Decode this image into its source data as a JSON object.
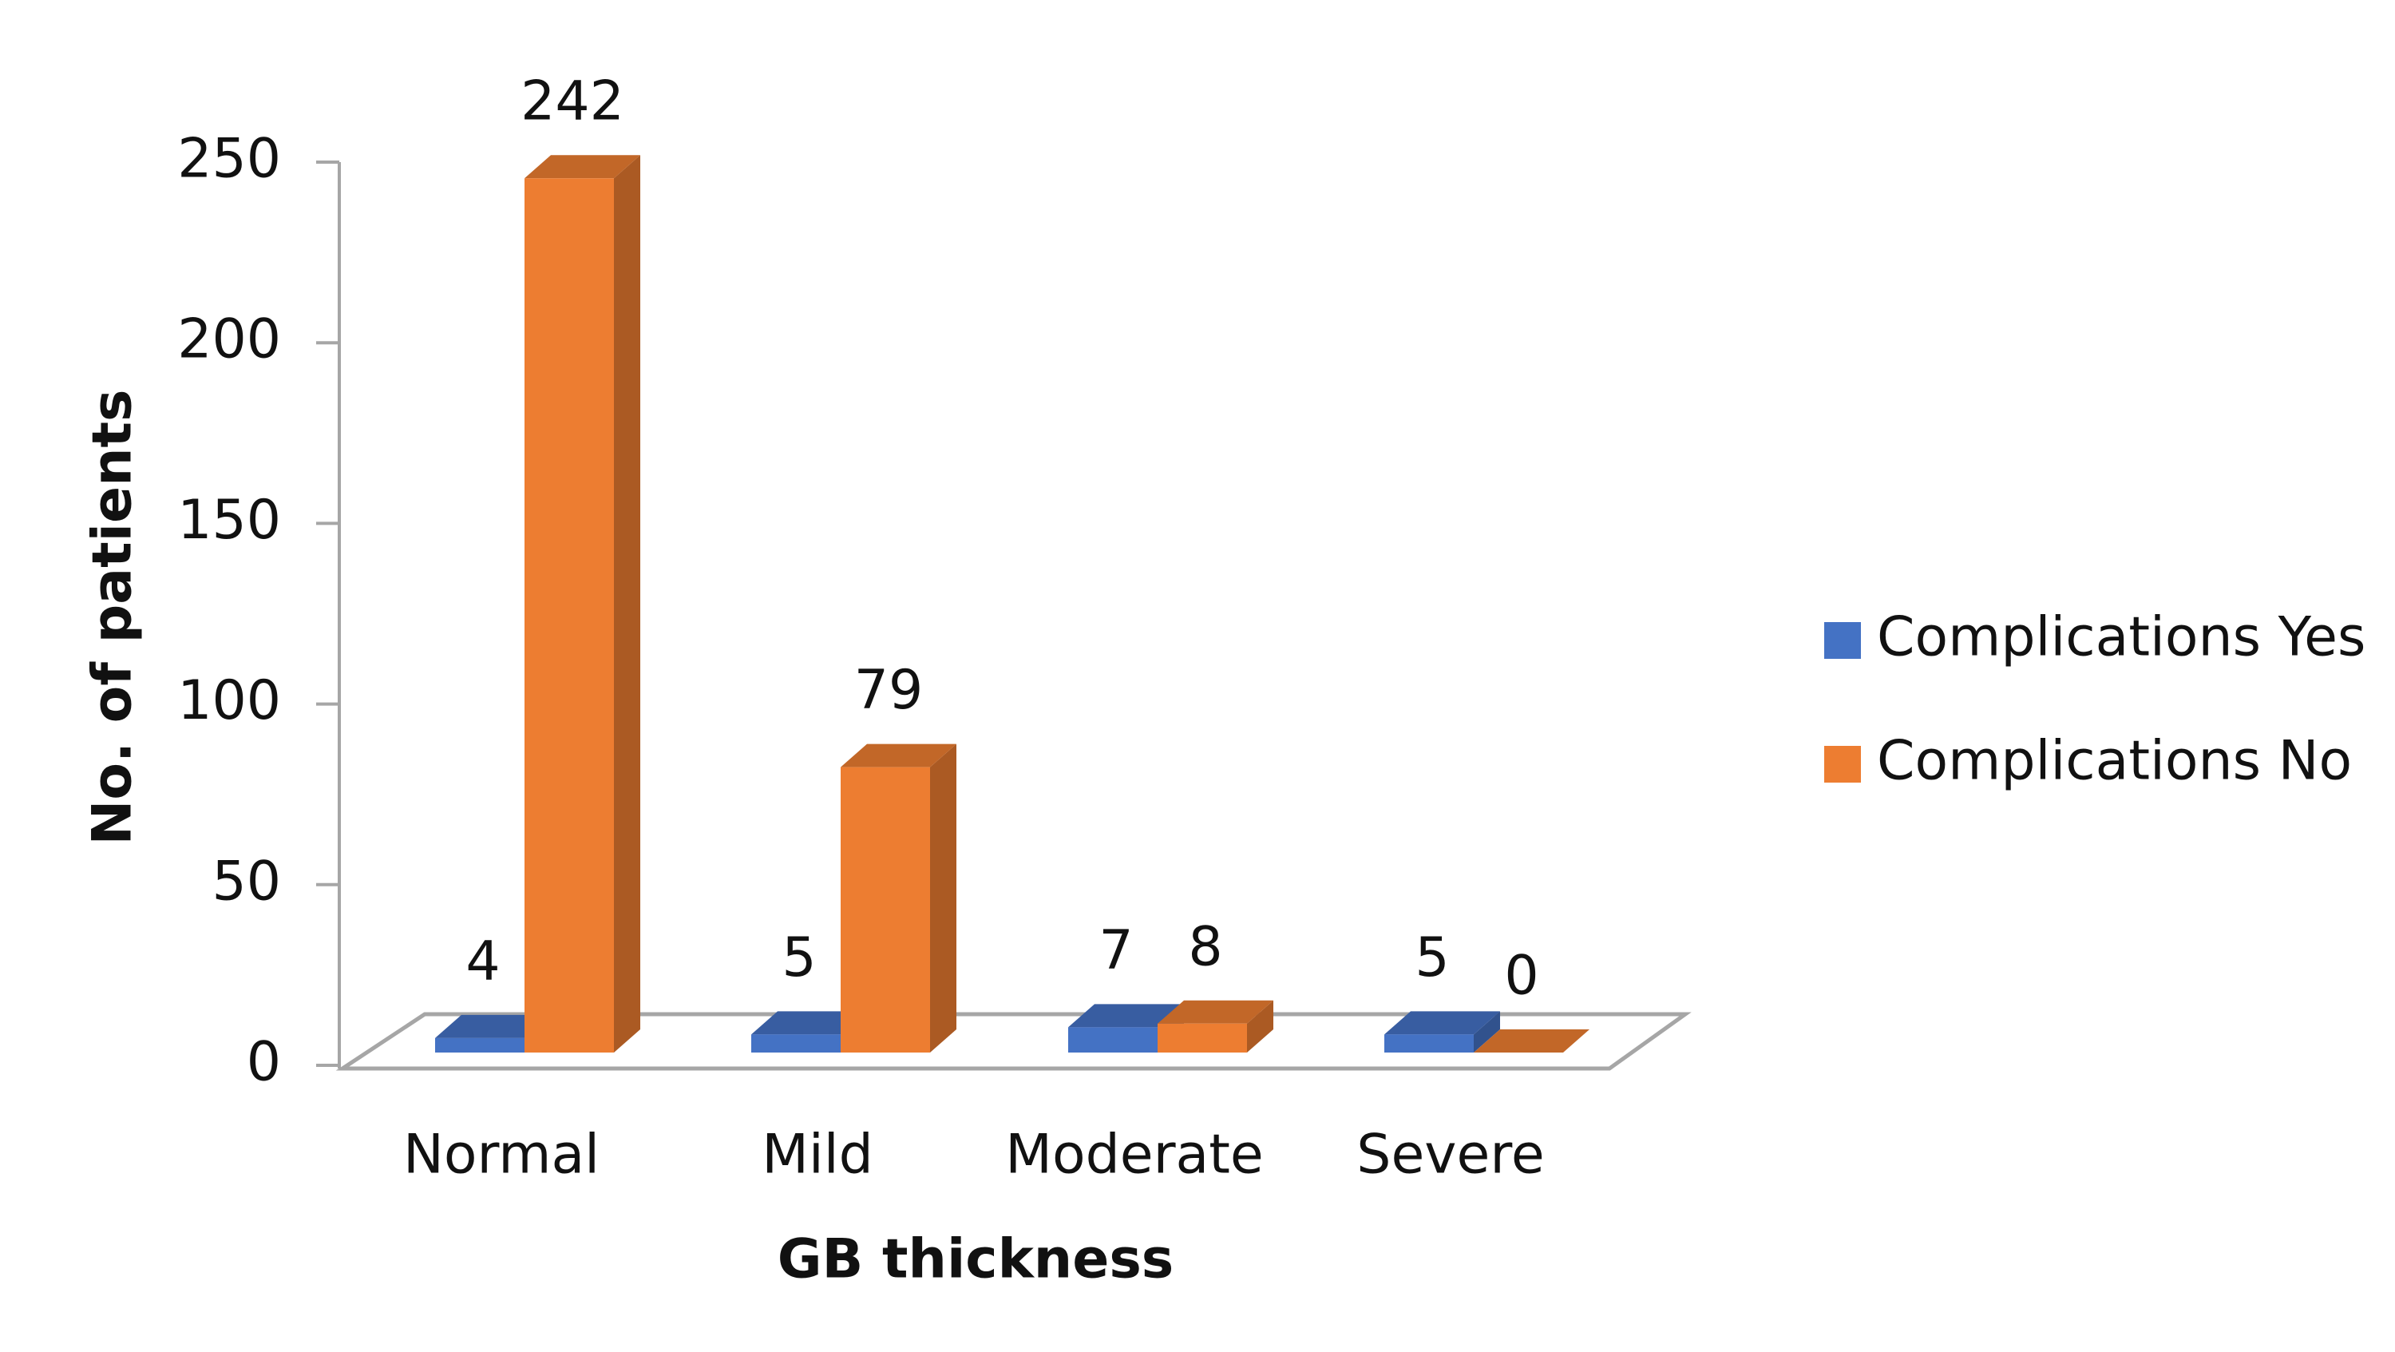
{
  "chart_data": {
    "type": "bar3d",
    "x_label": "GB thickness",
    "y_label": "No. of patients",
    "categories": [
      "Normal",
      "Mild",
      "Moderate",
      "Severe"
    ],
    "series": [
      {
        "name": "Complications Yes",
        "color": "#4472c4",
        "values": [
          4,
          5,
          7,
          5
        ]
      },
      {
        "name": "Complications No",
        "color": "#ed7d31",
        "values": [
          242,
          79,
          8,
          0
        ]
      }
    ],
    "ylim": [
      0,
      250
    ],
    "yticks": [
      0,
      50,
      100,
      150,
      200,
      250
    ],
    "legend": "right",
    "data_labels": true
  }
}
